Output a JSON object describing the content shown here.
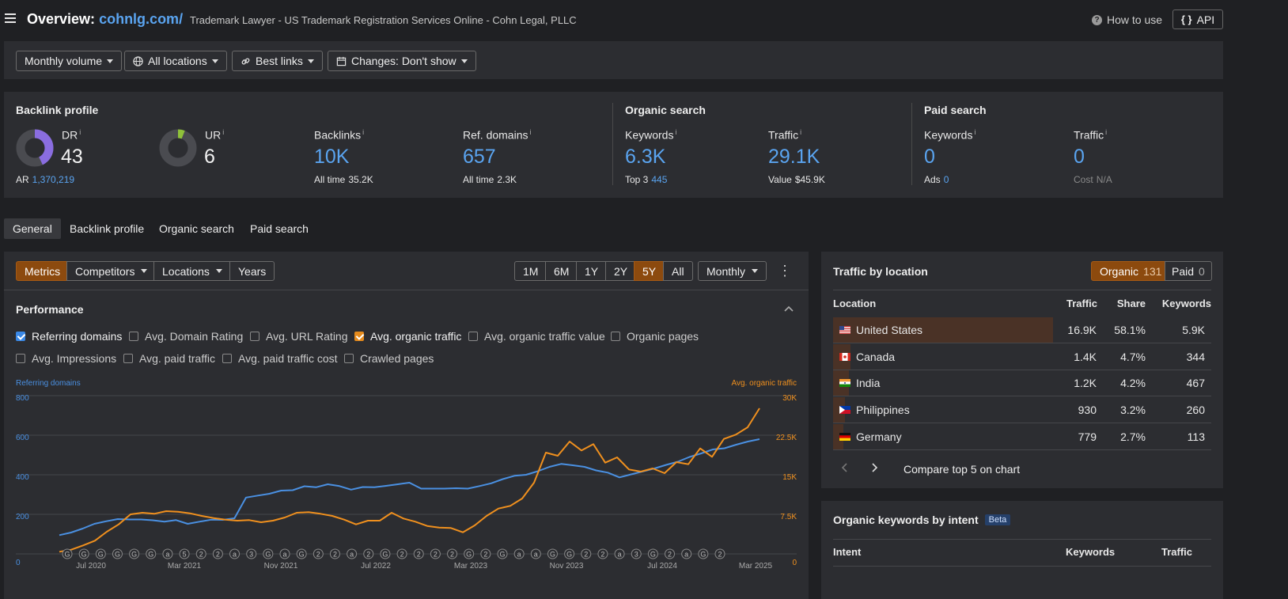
{
  "header": {
    "title_prefix": "Overview:",
    "domain": "cohnlg.com/",
    "subtitle": "Trademark Lawyer - US Trademark Registration Services Online - Cohn Legal, PLLC",
    "how_to": "How to use",
    "api": "API",
    "api_icon": "{ }"
  },
  "filters": {
    "volume": "Monthly volume",
    "locations": "All locations",
    "links": "Best links",
    "changes": "Changes: Don't show"
  },
  "backlink_profile": {
    "title": "Backlink profile",
    "dr_label": "DR",
    "dr_value": "43",
    "ar_label": "AR",
    "ar_value": "1,370,219",
    "ur_label": "UR",
    "ur_value": "6",
    "backlinks_label": "Backlinks",
    "backlinks_value": "10K",
    "backlinks_sub_label": "All time",
    "backlinks_sub_value": "35.2K",
    "refdomains_label": "Ref. domains",
    "refdomains_value": "657",
    "refdomains_sub_label": "All time",
    "refdomains_sub_value": "2.3K"
  },
  "organic_search": {
    "title": "Organic search",
    "keywords_label": "Keywords",
    "keywords_value": "6.3K",
    "top3_label": "Top 3",
    "top3_value": "445",
    "traffic_label": "Traffic",
    "traffic_value": "29.1K",
    "value_label": "Value",
    "value_value": "$45.9K"
  },
  "paid_search": {
    "title": "Paid search",
    "keywords_label": "Keywords",
    "keywords_value": "0",
    "ads_label": "Ads",
    "ads_value": "0",
    "traffic_label": "Traffic",
    "traffic_value": "0",
    "cost_label": "Cost",
    "cost_value": "N/A"
  },
  "info_mark": "i",
  "tabs": [
    "General",
    "Backlink profile",
    "Organic search",
    "Paid search"
  ],
  "chart_toolbar": {
    "metrics": "Metrics",
    "competitors": "Competitors",
    "locations": "Locations",
    "years": "Years",
    "ranges": [
      "1M",
      "6M",
      "1Y",
      "2Y",
      "5Y",
      "All"
    ],
    "active_range": "5Y",
    "interval": "Monthly",
    "more_icon": "⋮"
  },
  "performance": {
    "title": "Performance",
    "checkboxes": [
      {
        "label": "Referring domains",
        "checked": true
      },
      {
        "label": "Avg. Domain Rating",
        "checked": false
      },
      {
        "label": "Avg. URL Rating",
        "checked": false
      },
      {
        "label": "Avg. organic traffic",
        "checked": true
      },
      {
        "label": "Avg. organic traffic value",
        "checked": false
      },
      {
        "label": "Organic pages",
        "checked": false
      },
      {
        "label": "Avg. Impressions",
        "checked": false
      },
      {
        "label": "Avg. paid traffic",
        "checked": false
      },
      {
        "label": "Avg. paid traffic cost",
        "checked": false
      },
      {
        "label": "Crawled pages",
        "checked": false
      }
    ]
  },
  "chart_data": {
    "type": "line",
    "left_axis_label": "Referring domains",
    "right_axis_label": "Avg. organic traffic",
    "left_ticks": [
      "0",
      "200",
      "400",
      "600",
      "800"
    ],
    "right_ticks": [
      "0",
      "7.5K",
      "15K",
      "22.5K",
      "30K"
    ],
    "left_ylim": [
      0,
      800
    ],
    "right_ylim": [
      0,
      30000
    ],
    "x_ticks": [
      "Jul 2020",
      "Mar 2021",
      "Nov 2021",
      "Jul 2022",
      "Mar 2023",
      "Nov 2023",
      "Jul 2024",
      "Mar 2025"
    ],
    "grid": true,
    "colors": {
      "referring_domains": "#4a90e2",
      "organic_traffic": "#f0901e"
    },
    "series": [
      {
        "name": "Referring domains",
        "axis": "left",
        "values": [
          95,
          108,
          128,
          152,
          165,
          176,
          174,
          174,
          170,
          163,
          171,
          152,
          163,
          173,
          172,
          180,
          285,
          295,
          304,
          320,
          322,
          342,
          337,
          352,
          343,
          325,
          338,
          337,
          344,
          352,
          360,
          330,
          330,
          330,
          332,
          330,
          343,
          357,
          378,
          395,
          400,
          418,
          440,
          455,
          448,
          440,
          422,
          411,
          387,
          402,
          417,
          432,
          450,
          466,
          490,
          508,
          528,
          534,
          552,
          568,
          580
        ],
        "x_start_index": 0
      },
      {
        "name": "Avg. organic traffic",
        "axis": "right",
        "values": [
          400,
          800,
          1600,
          2500,
          4200,
          5600,
          7500,
          7800,
          7600,
          8100,
          8000,
          7700,
          7200,
          6800,
          6500,
          6300,
          6400,
          6000,
          6300,
          6900,
          7800,
          7900,
          7600,
          7200,
          6500,
          5600,
          6300,
          6300,
          7800,
          6700,
          6100,
          5300,
          5000,
          4900,
          4100,
          5400,
          7200,
          8600,
          9100,
          10500,
          13500,
          19200,
          18600,
          21300,
          19600,
          20800,
          17300,
          18300,
          16000,
          15600,
          16200,
          15300,
          17400,
          17000,
          20000,
          18400,
          21800,
          22600,
          24000,
          27600
        ],
        "x_start_index": 0
      }
    ],
    "annotation_markers": [
      "G",
      "G",
      "G",
      "G",
      "G",
      "G",
      "a",
      "5",
      "2",
      "2",
      "a",
      "3",
      "G",
      "a",
      "G",
      "2",
      "2",
      "a",
      "2",
      "G",
      "2",
      "2",
      "2",
      "2",
      "G",
      "2",
      "G",
      "a",
      "a",
      "G",
      "G",
      "2",
      "2",
      "a",
      "3",
      "G",
      "2",
      "a",
      "G",
      "2"
    ]
  },
  "traffic_by_location": {
    "title": "Traffic by location",
    "organic_label": "Organic",
    "organic_count": "131",
    "paid_label": "Paid",
    "paid_count": "0",
    "columns": [
      "Location",
      "Traffic",
      "Share",
      "Keywords"
    ],
    "rows": [
      {
        "country": "United States",
        "traffic": "16.9K",
        "share": "58.1%",
        "keywords": "5.9K",
        "share_fraction": 0.581
      },
      {
        "country": "Canada",
        "traffic": "1.4K",
        "share": "4.7%",
        "keywords": "344",
        "share_fraction": 0.047
      },
      {
        "country": "India",
        "traffic": "1.2K",
        "share": "4.2%",
        "keywords": "467",
        "share_fraction": 0.042
      },
      {
        "country": "Philippines",
        "traffic": "930",
        "share": "3.2%",
        "keywords": "260",
        "share_fraction": 0.032
      },
      {
        "country": "Germany",
        "traffic": "779",
        "share": "2.7%",
        "keywords": "113",
        "share_fraction": 0.027
      }
    ],
    "compare_label": "Compare top 5 on chart"
  },
  "organic_keywords_intent": {
    "title": "Organic keywords by intent",
    "badge": "Beta",
    "columns": [
      "Intent",
      "Keywords",
      "Traffic"
    ]
  }
}
